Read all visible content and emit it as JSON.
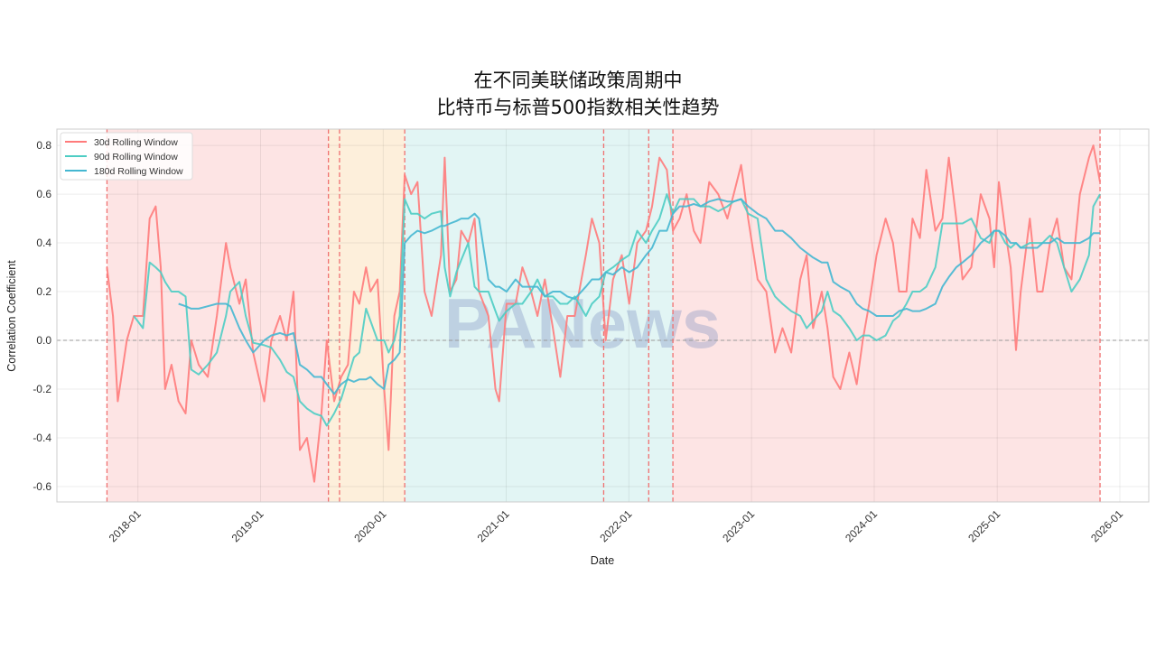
{
  "chart_data": {
    "type": "line",
    "title": [
      "在不同美联储政策周期中",
      "比特币与标普500指数相关性趋势"
    ],
    "xlabel": "Date",
    "ylabel": "Correlation Coefficient",
    "xlim": [
      "2017-05-05",
      "2026-03-28"
    ],
    "ylim": [
      -0.663,
      0.867
    ],
    "xticks": [
      "2018-01",
      "2019-01",
      "2020-01",
      "2021-01",
      "2022-01",
      "2023-01",
      "2024-01",
      "2025-01",
      "2026-01"
    ],
    "yticks": [
      -0.6,
      -0.4,
      -0.2,
      0.0,
      0.2,
      0.4,
      0.6,
      0.8
    ],
    "grid": true,
    "legend_position": "top-left",
    "zero_line": 0.0,
    "watermark": "PANews",
    "regions": [
      {
        "start": "2017-10-01",
        "end": "2019-07-22",
        "color": "#fde4e4"
      },
      {
        "start": "2019-07-22",
        "end": "2020-03-05",
        "color": "#fdefdb"
      },
      {
        "start": "2020-03-05",
        "end": "2022-05-12",
        "color": "#e2f5f4"
      },
      {
        "start": "2022-05-12",
        "end": "2025-11-03",
        "color": "#fde4e4"
      }
    ],
    "vlines": [
      "2017-10-01",
      "2019-07-22",
      "2019-08-24",
      "2020-03-05",
      "2021-10-18",
      "2022-03-01",
      "2022-05-12",
      "2025-11-03"
    ],
    "x": [
      "2017-10-01",
      "2017-10-19",
      "2017-11-02",
      "2017-11-29",
      "2017-12-20",
      "2018-01-16",
      "2018-02-05",
      "2018-02-23",
      "2018-03-10",
      "2018-03-23",
      "2018-04-11",
      "2018-05-02",
      "2018-05-23",
      "2018-06-09",
      "2018-07-01",
      "2018-07-28",
      "2018-08-24",
      "2018-09-20",
      "2018-10-03",
      "2018-10-30",
      "2018-11-18",
      "2018-12-10",
      "2019-01-12",
      "2019-02-02",
      "2019-02-28",
      "2019-03-20",
      "2019-04-09",
      "2019-04-28",
      "2019-05-19",
      "2019-06-10",
      "2019-07-01",
      "2019-07-17",
      "2019-08-08",
      "2019-08-29",
      "2019-09-18",
      "2019-10-06",
      "2019-10-22",
      "2019-11-11",
      "2019-11-24",
      "2019-12-15",
      "2020-01-04",
      "2020-01-17",
      "2020-02-03",
      "2020-02-19",
      "2020-03-05",
      "2020-03-24",
      "2020-04-12",
      "2020-05-03",
      "2020-05-24",
      "2020-06-21",
      "2020-07-02",
      "2020-07-18",
      "2020-08-06",
      "2020-08-20",
      "2020-09-10",
      "2020-09-29",
      "2020-10-12",
      "2020-11-09",
      "2020-11-30",
      "2020-12-11",
      "2021-01-02",
      "2021-01-29",
      "2021-02-18",
      "2021-03-16",
      "2021-04-04",
      "2021-04-26",
      "2021-05-20",
      "2021-06-11",
      "2021-07-02",
      "2021-07-24",
      "2021-08-26",
      "2021-09-13",
      "2021-10-05",
      "2021-10-24",
      "2021-11-15",
      "2021-12-11",
      "2022-01-02",
      "2022-01-26",
      "2022-02-21",
      "2022-03-11",
      "2022-04-02",
      "2022-04-24",
      "2022-05-12",
      "2022-06-01",
      "2022-06-22",
      "2022-07-13",
      "2022-08-02",
      "2022-08-28",
      "2022-09-24",
      "2022-10-21",
      "2022-11-09",
      "2022-12-01",
      "2022-12-22",
      "2023-01-19",
      "2023-02-14",
      "2023-03-12",
      "2023-04-03",
      "2023-04-29",
      "2023-05-26",
      "2023-06-14",
      "2023-07-03",
      "2023-07-29",
      "2023-08-15",
      "2023-09-01",
      "2023-09-22",
      "2023-10-19",
      "2023-11-10",
      "2023-11-28",
      "2023-12-17",
      "2024-01-08",
      "2024-02-04",
      "2024-02-26",
      "2024-03-15",
      "2024-04-06",
      "2024-04-24",
      "2024-05-16",
      "2024-06-04",
      "2024-07-01",
      "2024-07-22",
      "2024-08-10",
      "2024-09-01",
      "2024-09-20",
      "2024-10-16",
      "2024-11-13",
      "2024-12-09",
      "2024-12-23",
      "2025-01-06",
      "2025-01-25",
      "2025-02-10",
      "2025-02-26",
      "2025-03-12",
      "2025-04-08",
      "2025-04-30",
      "2025-05-16",
      "2025-06-07",
      "2025-06-28",
      "2025-07-19",
      "2025-08-10",
      "2025-09-04",
      "2025-10-01",
      "2025-10-14",
      "2025-11-03"
    ],
    "series": [
      {
        "name": "30d Rolling Window",
        "color": "#ff7b7b",
        "values": [
          0.3,
          0.1,
          -0.25,
          0.0,
          0.1,
          0.1,
          0.5,
          0.55,
          0.3,
          -0.2,
          -0.1,
          -0.25,
          -0.3,
          0.0,
          -0.1,
          -0.15,
          0.1,
          0.4,
          0.3,
          0.15,
          0.25,
          -0.05,
          -0.25,
          0.0,
          0.1,
          0.0,
          0.2,
          -0.45,
          -0.4,
          -0.58,
          -0.3,
          0.0,
          -0.25,
          -0.15,
          -0.1,
          0.2,
          0.15,
          0.3,
          0.2,
          0.25,
          -0.2,
          -0.45,
          0.1,
          0.2,
          0.68,
          0.6,
          0.65,
          0.2,
          0.1,
          0.35,
          0.75,
          0.2,
          0.25,
          0.45,
          0.4,
          0.5,
          0.2,
          0.1,
          -0.2,
          -0.25,
          0.15,
          0.15,
          0.3,
          0.2,
          0.1,
          0.25,
          0.05,
          -0.15,
          0.1,
          0.1,
          0.35,
          0.5,
          0.4,
          0.0,
          0.25,
          0.35,
          0.15,
          0.4,
          0.45,
          0.55,
          0.75,
          0.7,
          0.45,
          0.5,
          0.6,
          0.45,
          0.4,
          0.65,
          0.6,
          0.5,
          0.6,
          0.72,
          0.5,
          0.25,
          0.2,
          -0.05,
          0.05,
          -0.05,
          0.25,
          0.35,
          0.05,
          0.2,
          0.05,
          -0.15,
          -0.2,
          -0.05,
          -0.18,
          0.0,
          0.15,
          0.35,
          0.5,
          0.4,
          0.2,
          0.2,
          0.5,
          0.42,
          0.7,
          0.45,
          0.5,
          0.75,
          0.5,
          0.25,
          0.3,
          0.6,
          0.5,
          0.3,
          0.65,
          0.45,
          0.3,
          -0.04,
          0.2,
          0.5,
          0.2,
          0.2,
          0.4,
          0.5,
          0.3,
          0.25,
          0.6,
          0.75,
          0.8,
          0.65
        ]
      },
      {
        "name": "90d Rolling Window",
        "color": "#4ecdc4",
        "values": [
          null,
          null,
          null,
          null,
          0.1,
          0.05,
          0.32,
          0.3,
          0.28,
          0.24,
          0.2,
          0.2,
          0.18,
          -0.12,
          -0.14,
          -0.1,
          -0.05,
          0.1,
          0.2,
          0.24,
          0.1,
          -0.01,
          -0.02,
          -0.03,
          -0.08,
          -0.13,
          -0.15,
          -0.25,
          -0.28,
          -0.3,
          -0.31,
          -0.35,
          -0.3,
          -0.24,
          -0.15,
          -0.07,
          -0.05,
          0.13,
          0.08,
          0.0,
          0.0,
          -0.05,
          0.0,
          0.1,
          0.58,
          0.52,
          0.52,
          0.5,
          0.52,
          0.53,
          0.3,
          0.18,
          0.28,
          0.33,
          0.4,
          0.22,
          0.2,
          0.2,
          0.12,
          0.08,
          0.12,
          0.15,
          0.15,
          0.2,
          0.25,
          0.18,
          0.18,
          0.15,
          0.15,
          0.18,
          0.1,
          0.15,
          0.18,
          0.28,
          0.3,
          0.33,
          0.35,
          0.45,
          0.4,
          0.45,
          0.5,
          0.6,
          0.52,
          0.58,
          0.58,
          0.58,
          0.55,
          0.55,
          0.53,
          0.55,
          0.57,
          0.58,
          0.52,
          0.5,
          0.25,
          0.18,
          0.15,
          0.12,
          0.1,
          0.05,
          0.08,
          0.12,
          0.2,
          0.12,
          0.1,
          0.05,
          0.0,
          0.02,
          0.02,
          0.0,
          0.02,
          0.08,
          0.1,
          0.15,
          0.2,
          0.2,
          0.22,
          0.3,
          0.48,
          0.48,
          0.48,
          0.48,
          0.5,
          0.42,
          0.4,
          0.45,
          0.45,
          0.4,
          0.38,
          0.4,
          0.38,
          0.4,
          0.4,
          0.4,
          0.43,
          0.4,
          0.3,
          0.2,
          0.25,
          0.35,
          0.55,
          0.6
        ]
      },
      {
        "name": "180d Rolling Window",
        "color": "#45b7d1",
        "values": [
          null,
          null,
          null,
          null,
          null,
          null,
          null,
          null,
          null,
          null,
          null,
          0.15,
          0.14,
          0.13,
          0.13,
          0.14,
          0.15,
          0.15,
          0.14,
          0.05,
          0.0,
          -0.05,
          0.0,
          0.02,
          0.03,
          0.02,
          0.03,
          -0.1,
          -0.12,
          -0.15,
          -0.15,
          -0.18,
          -0.22,
          -0.18,
          -0.16,
          -0.17,
          -0.16,
          -0.16,
          -0.15,
          -0.18,
          -0.2,
          -0.1,
          -0.08,
          -0.05,
          0.4,
          0.43,
          0.45,
          0.44,
          0.45,
          0.47,
          0.47,
          0.48,
          0.49,
          0.5,
          0.5,
          0.52,
          0.5,
          0.25,
          0.22,
          0.22,
          0.2,
          0.25,
          0.22,
          0.22,
          0.22,
          0.18,
          0.2,
          0.2,
          0.18,
          0.17,
          0.22,
          0.25,
          0.25,
          0.28,
          0.27,
          0.3,
          0.28,
          0.3,
          0.35,
          0.38,
          0.45,
          0.45,
          0.52,
          0.55,
          0.55,
          0.56,
          0.55,
          0.57,
          0.58,
          0.57,
          0.57,
          0.58,
          0.55,
          0.52,
          0.5,
          0.45,
          0.45,
          0.42,
          0.38,
          0.36,
          0.34,
          0.32,
          0.32,
          0.24,
          0.22,
          0.2,
          0.15,
          0.13,
          0.12,
          0.1,
          0.1,
          0.1,
          0.12,
          0.13,
          0.12,
          0.12,
          0.13,
          0.15,
          0.22,
          0.26,
          0.3,
          0.32,
          0.35,
          0.4,
          0.43,
          0.45,
          0.45,
          0.43,
          0.4,
          0.4,
          0.38,
          0.38,
          0.38,
          0.4,
          0.4,
          0.42,
          0.4,
          0.4,
          0.4,
          0.42,
          0.44,
          0.44
        ]
      }
    ]
  }
}
